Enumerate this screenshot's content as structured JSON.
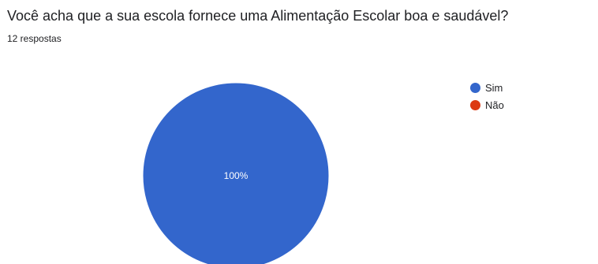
{
  "question": {
    "title": "Você acha que a sua escola fornece uma Alimentação Escolar boa e saudável?",
    "response_count": "12 respostas"
  },
  "chart_data": {
    "type": "pie",
    "title": "Você acha que a sua escola fornece uma Alimentação Escolar boa e saudável?",
    "categories": [
      "Sim",
      "Não"
    ],
    "values": [
      100,
      0
    ],
    "colors": [
      "#3366cc",
      "#dc3912"
    ],
    "data_labels": [
      "100%",
      ""
    ],
    "legend_position": "right"
  }
}
